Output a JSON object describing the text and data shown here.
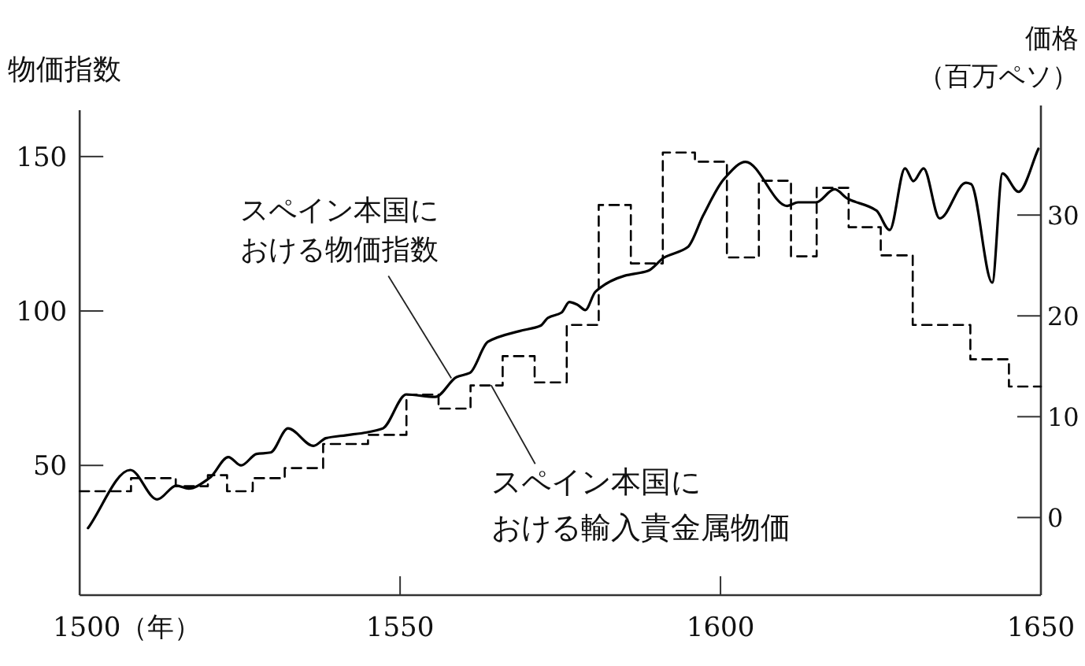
{
  "chart_data": {
    "type": "line",
    "ylabel": "物価指数",
    "y2label": "価格（百万ペソ）",
    "xlim": [
      1500,
      1650
    ],
    "xticks": [
      {
        "value": 1500,
        "label": "1500（年）"
      },
      1550,
      1600,
      1650
    ],
    "ylim": [
      8,
      165
    ],
    "yticks": [
      50,
      100,
      150
    ],
    "y2lim": [
      -7.7,
      40.4
    ],
    "y2ticks": [
      0,
      10,
      20,
      30
    ],
    "grid": false,
    "series": [
      {
        "type": "line",
        "color": "#000000",
        "line_style": "solid",
        "x": [
          1501.3,
          1507.9,
          1512.1,
          1515.1,
          1517,
          1520.3,
          1523.2,
          1525.2,
          1527.6,
          1529.8,
          1532.5,
          1536.5,
          1538.4,
          1541.6,
          1544.8,
          1547.3,
          1551,
          1555.5,
          1558.8,
          1560.9,
          1563.7,
          1568.6,
          1571.9,
          1573.1,
          1575.2,
          1576.4,
          1577.7,
          1578.9,
          1580.5,
          1585,
          1588.7,
          1591.2,
          1594.9,
          1597.3,
          1600.6,
          1603.9,
          1610.4,
          1612.1,
          1614.9,
          1617.8,
          1619.8,
          1624.3,
          1626.4,
          1628.8,
          1630.1,
          1631.7,
          1634.2,
          1638.3,
          1639.1,
          1642.4,
          1644,
          1646.5,
          1649.6
        ],
        "values": [
          29.7,
          48.5,
          39,
          43.5,
          42.5,
          46,
          52.7,
          50,
          53.7,
          54.2,
          62,
          56.3,
          58.8,
          59.8,
          60.7,
          62,
          73,
          72.2,
          78.6,
          80,
          90,
          93.5,
          95.2,
          97.8,
          99.5,
          102.9,
          102,
          100.3,
          106.3,
          111.4,
          113,
          117.3,
          120.7,
          130.9,
          142.9,
          148.3,
          134,
          135.2,
          135.2,
          139.4,
          136.4,
          132.6,
          126.2,
          146.2,
          142,
          146.2,
          130,
          141.5,
          141.1,
          109.2,
          144.5,
          138.6,
          152.5
        ]
      },
      {
        "type": "step",
        "axis": "y2",
        "color": "#000000",
        "line_style": "dashed",
        "x": [
          1500,
          1508,
          1515,
          1520,
          1523,
          1527,
          1532,
          1538,
          1545,
          1551,
          1556,
          1561,
          1566,
          1571,
          1576,
          1581,
          1586,
          1591,
          1596,
          1601,
          1606,
          1611,
          1615,
          1620,
          1625,
          1630,
          1639,
          1645,
          1650
        ],
        "values": [
          2.6,
          3.9,
          3.1,
          4.2,
          2.6,
          3.9,
          4.9,
          7.3,
          8.2,
          12.2,
          10.8,
          13.1,
          16,
          13.4,
          19.1,
          31,
          25.2,
          36.2,
          35.3,
          25.8,
          33.4,
          25.9,
          32.7,
          28.8,
          26,
          19.1,
          15.7,
          13,
          13
        ]
      }
    ],
    "annotations": [
      {
        "text": "スペイン本国における物価指数",
        "x": 1558,
        "y": 78.2
      },
      {
        "text": "スペイン本国における輸入貴金属物価",
        "x": 1564.2,
        "y": 76
      }
    ]
  }
}
